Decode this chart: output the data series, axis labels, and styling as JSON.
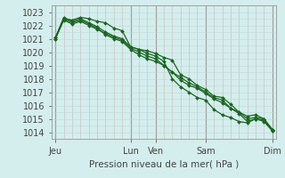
{
  "background_color": "#d4eeed",
  "grid_color_major": "#c0d8d8",
  "grid_color_minor": "#d0e8e8",
  "line_color": "#1a6620",
  "xlabel": "Pression niveau de la mer( hPa )",
  "ylim": [
    1013.5,
    1023.5
  ],
  "yticks": [
    1014,
    1015,
    1016,
    1017,
    1018,
    1019,
    1020,
    1021,
    1022,
    1023
  ],
  "x_day_labels": [
    "Jeu",
    "Lun",
    "Ven",
    "Sam",
    "Dim"
  ],
  "x_day_positions": [
    0,
    9,
    12,
    18,
    26
  ],
  "vline_positions": [
    0,
    9,
    12,
    18,
    26
  ],
  "series": [
    [
      1021.1,
      1022.6,
      1022.3,
      1022.5,
      1022.2,
      1021.9,
      1021.5,
      1021.2,
      1021.0,
      1020.4,
      1020.2,
      1020.1,
      1019.9,
      1019.6,
      1019.4,
      1018.3,
      1018.0,
      1017.5,
      1017.2,
      1016.7,
      1016.6,
      1016.1,
      1015.5,
      1015.2,
      1015.3,
      1015.0,
      1014.2
    ],
    [
      1021.1,
      1022.5,
      1022.2,
      1022.4,
      1022.1,
      1021.8,
      1021.3,
      1021.0,
      1020.8,
      1020.2,
      1019.8,
      1019.5,
      1019.3,
      1019.0,
      1018.5,
      1017.9,
      1017.5,
      1017.3,
      1016.9,
      1016.5,
      1016.2,
      1015.8,
      1015.5,
      1015.0,
      1015.1,
      1015.0,
      1014.2
    ],
    [
      1021.0,
      1022.4,
      1022.1,
      1022.3,
      1022.0,
      1021.7,
      1021.4,
      1021.1,
      1020.9,
      1020.3,
      1020.0,
      1019.7,
      1019.5,
      1019.0,
      1018.5,
      1018.1,
      1017.7,
      1017.4,
      1017.0,
      1016.6,
      1016.4,
      1015.8,
      1015.4,
      1014.8,
      1015.0,
      1014.9,
      1014.1
    ],
    [
      1021.0,
      1022.5,
      1022.4,
      1022.6,
      1022.5,
      1022.3,
      1022.2,
      1021.8,
      1021.6,
      1020.4,
      1020.2,
      1019.9,
      1019.7,
      1019.3,
      1018.0,
      1017.4,
      1017.0,
      1016.6,
      1016.4,
      1015.7,
      1015.3,
      1015.1,
      1014.8,
      1014.7,
      1015.0,
      1014.8,
      1014.1
    ]
  ],
  "marker": "D",
  "marker_size": 2.0,
  "line_width": 0.9,
  "num_points": 27,
  "spine_color": "#999999",
  "tick_color": "#444444",
  "label_fontsize": 7,
  "xlabel_fontsize": 7.5
}
